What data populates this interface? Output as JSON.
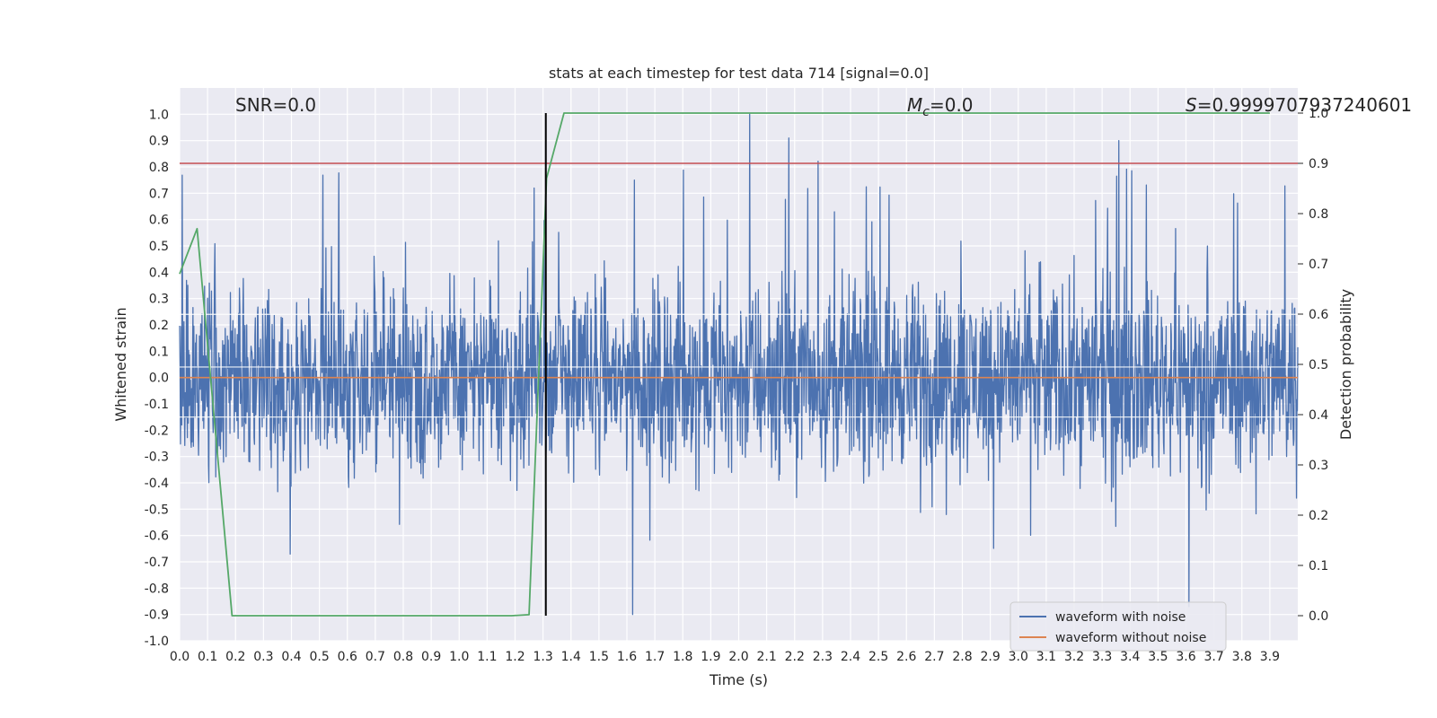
{
  "chart_data": {
    "type": "line",
    "title": "stats at each timestep for test data 714 [signal=0.0]",
    "xlabel": "Time (s)",
    "ylabel": "Whitened strain",
    "y2label": "Detection probability",
    "xlim": [
      0.0,
      4.0
    ],
    "ylim": [
      -1.0,
      1.1
    ],
    "y2lim": [
      -0.05,
      1.05
    ],
    "x_ticks": [
      "0.0",
      "0.1",
      "0.2",
      "0.3",
      "0.4",
      "0.5",
      "0.6",
      "0.7",
      "0.8",
      "0.9",
      "1.0",
      "1.1",
      "1.2",
      "1.3",
      "1.4",
      "1.5",
      "1.6",
      "1.7",
      "1.8",
      "1.9",
      "2.0",
      "2.1",
      "2.2",
      "2.3",
      "2.4",
      "2.5",
      "2.6",
      "2.7",
      "2.8",
      "2.9",
      "3.0",
      "3.1",
      "3.2",
      "3.3",
      "3.4",
      "3.5",
      "3.6",
      "3.7",
      "3.8",
      "3.9"
    ],
    "y_ticks": [
      "1.0",
      "0.9",
      "0.8",
      "0.7",
      "0.6",
      "0.5",
      "0.4",
      "0.3",
      "0.2",
      "0.1",
      "0.0",
      "-0.1",
      "-0.2",
      "-0.3",
      "-0.4",
      "-0.5",
      "-0.6",
      "-0.7",
      "-0.8",
      "-0.9",
      "-1.0"
    ],
    "y2_ticks": [
      "1.0",
      "0.9",
      "0.8",
      "0.7",
      "0.6",
      "0.5",
      "0.4",
      "0.3",
      "0.2",
      "0.1",
      "0.0"
    ],
    "grid": true,
    "legend_placement": "lower-right",
    "annotations": {
      "snr": "SNR=0.0",
      "mc_symbol": "M",
      "mc_sub": "c",
      "mc_value": "=0.0",
      "s_symbol": "S",
      "s_value": "=0.9999707937240601"
    },
    "series": [
      {
        "name": "waveform with noise",
        "color": "#4c72b0",
        "axis": "left",
        "x_range": [
          0.0,
          4.0
        ],
        "amplitude_range": [
          -0.9,
          1.0
        ],
        "notable_peaks": [
          {
            "x": 2.04,
            "y": 1.0
          },
          {
            "x": 2.18,
            "y": 0.91
          },
          {
            "x": 3.36,
            "y": 0.9
          },
          {
            "x": 1.62,
            "y": -0.9
          },
          {
            "x": 3.61,
            "y": -0.87
          }
        ]
      },
      {
        "name": "waveform without noise",
        "color": "#dd8452",
        "axis": "left",
        "x": [
          0.0,
          4.0
        ],
        "y": [
          0.0,
          0.0
        ]
      },
      {
        "color": "#55a868",
        "axis": "right",
        "x": [
          0.0,
          0.0625,
          0.1875,
          0.25,
          1.1875,
          1.25,
          1.3125,
          1.375,
          3.9
        ],
        "y": [
          0.68,
          0.77,
          0.0,
          0.0,
          0.0,
          0.002,
          0.87,
          1.0,
          1.0
        ]
      },
      {
        "color": "#c44e52",
        "axis": "right",
        "type": "hline",
        "y": 0.9
      },
      {
        "color": "#000000",
        "axis": "right",
        "type": "vline",
        "x": 1.31,
        "y_range": [
          0.0,
          1.0
        ]
      }
    ]
  }
}
